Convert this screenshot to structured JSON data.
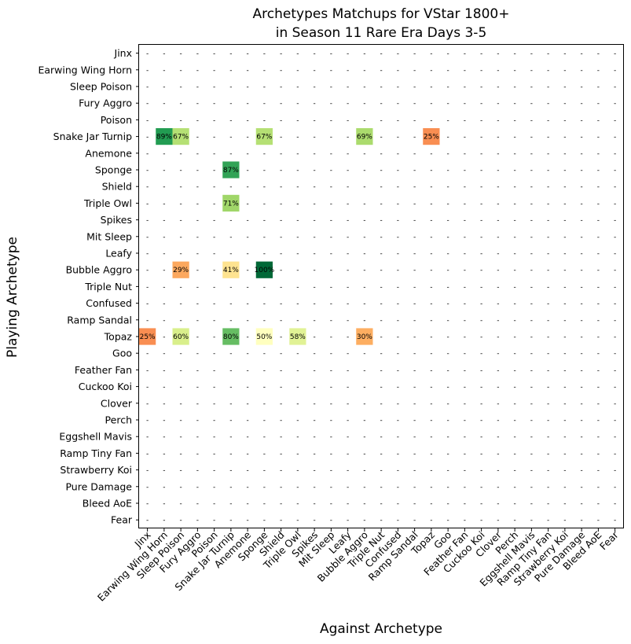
{
  "chart_data": {
    "type": "heatmap",
    "title": "Archetypes Matchups for VStar 1800+",
    "subtitle": "in Season 11 Rare Era Days 3-5",
    "xlabel": "Against Archetype",
    "ylabel": "Playing Archetype",
    "empty_marker": "-",
    "colormap": "RdYlGn",
    "value_range": [
      0,
      100
    ],
    "categories": [
      "Jinx",
      "Earwing Wing Horn",
      "Sleep Poison",
      "Fury Aggro",
      "Poison",
      "Snake Jar Turnip",
      "Anemone",
      "Sponge",
      "Shield",
      "Triple Owl",
      "Spikes",
      "Mit Sleep",
      "Leafy",
      "Bubble Aggro",
      "Triple Nut",
      "Confused",
      "Ramp Sandal",
      "Topaz",
      "Goo",
      "Feather Fan",
      "Cuckoo Koi",
      "Clover",
      "Perch",
      "Eggshell Mavis",
      "Ramp Tiny Fan",
      "Strawberry Koi",
      "Pure Damage",
      "Bleed AoE",
      "Fear"
    ],
    "cells": [
      {
        "row": "Snake Jar Turnip",
        "col": "Earwing Wing Horn",
        "value": 89,
        "label": "89%"
      },
      {
        "row": "Snake Jar Turnip",
        "col": "Sleep Poison",
        "value": 67,
        "label": "67%"
      },
      {
        "row": "Snake Jar Turnip",
        "col": "Sponge",
        "value": 67,
        "label": "67%"
      },
      {
        "row": "Snake Jar Turnip",
        "col": "Bubble Aggro",
        "value": 69,
        "label": "69%"
      },
      {
        "row": "Snake Jar Turnip",
        "col": "Topaz",
        "value": 25,
        "label": "25%"
      },
      {
        "row": "Sponge",
        "col": "Snake Jar Turnip",
        "value": 87,
        "label": "87%"
      },
      {
        "row": "Triple Owl",
        "col": "Snake Jar Turnip",
        "value": 71,
        "label": "71%"
      },
      {
        "row": "Bubble Aggro",
        "col": "Sleep Poison",
        "value": 29,
        "label": "29%"
      },
      {
        "row": "Bubble Aggro",
        "col": "Snake Jar Turnip",
        "value": 41,
        "label": "41%"
      },
      {
        "row": "Bubble Aggro",
        "col": "Sponge",
        "value": 100,
        "label": "100%"
      },
      {
        "row": "Topaz",
        "col": "Jinx",
        "value": 25,
        "label": "25%"
      },
      {
        "row": "Topaz",
        "col": "Sleep Poison",
        "value": 60,
        "label": "60%"
      },
      {
        "row": "Topaz",
        "col": "Snake Jar Turnip",
        "value": 80,
        "label": "80%"
      },
      {
        "row": "Topaz",
        "col": "Sponge",
        "value": 50,
        "label": "50%"
      },
      {
        "row": "Topaz",
        "col": "Triple Owl",
        "value": 58,
        "label": "58%"
      },
      {
        "row": "Topaz",
        "col": "Bubble Aggro",
        "value": 30,
        "label": "30%"
      }
    ]
  }
}
